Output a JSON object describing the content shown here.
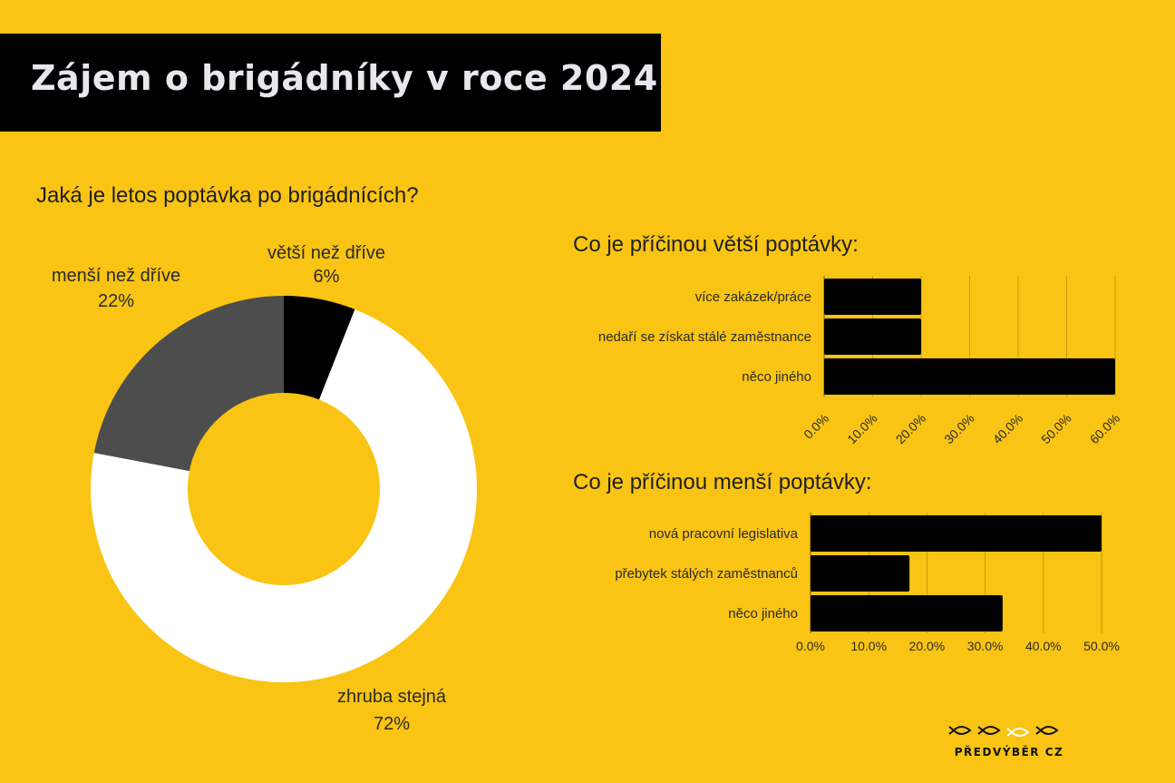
{
  "header": {
    "title": "Zájem o brigádníky v roce 2024"
  },
  "colors": {
    "background": "#F9C413",
    "bar": "#000000",
    "dark_slice": "#4d4d4d",
    "light_slice": "#ffffff",
    "black_slice": "#000000",
    "grid": "#c89a0c"
  },
  "chart_data": [
    {
      "type": "pie",
      "title": "Jaká je letos poptávka po brigádnících?",
      "donut": true,
      "slices": [
        {
          "label": "větší než dříve",
          "value": 6,
          "display": "6%",
          "color": "#000000"
        },
        {
          "label": "zhruba stejná",
          "value": 72,
          "display": "72%",
          "color": "#ffffff"
        },
        {
          "label": "menší než dříve",
          "value": 22,
          "display": "22%",
          "color": "#4d4d4d"
        }
      ]
    },
    {
      "type": "bar",
      "orientation": "horizontal",
      "title": "Co je příčinou větší poptávky:",
      "categories": [
        "více zakázek/práce",
        "nedaří se získat stálé zaměstnance",
        "něco jiného"
      ],
      "values": [
        20,
        20,
        60
      ],
      "xlim": [
        0,
        60
      ],
      "ticks": [
        "0.0%",
        "10.0%",
        "20.0%",
        "30.0%",
        "40.0%",
        "50.0%",
        "60.0%"
      ],
      "tick_rotation": "rotated",
      "grid": true
    },
    {
      "type": "bar",
      "orientation": "horizontal",
      "title": "Co je příčinou menší poptávky:",
      "categories": [
        "nová pracovní legislativa",
        "přebytek stálých zaměstnanců",
        "něco jiného"
      ],
      "values": [
        50,
        17,
        33
      ],
      "xlim": [
        0,
        50
      ],
      "ticks": [
        "0.0%",
        "10.0%",
        "20.0%",
        "30.0%",
        "40.0%",
        "50.0%"
      ],
      "tick_rotation": "horizontal",
      "grid": true
    }
  ],
  "logo": {
    "text": "PŘEDVÝBĚR CZ",
    "icon": "fish-icons"
  }
}
